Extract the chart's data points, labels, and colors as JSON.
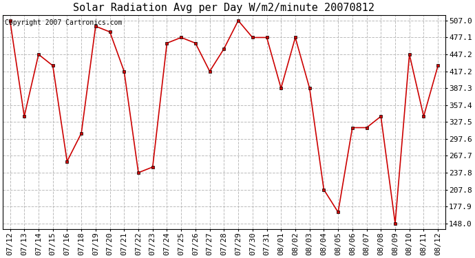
{
  "title": "Solar Radiation Avg per Day W/m2/minute 20070812",
  "copyright_text": "Copyright 2007 Cartronics.com",
  "labels": [
    "07/12",
    "07/13",
    "07/14",
    "07/15",
    "07/16",
    "07/18",
    "07/19",
    "07/20",
    "07/21",
    "07/22",
    "07/23",
    "07/24",
    "07/25",
    "07/26",
    "07/27",
    "07/28",
    "07/29",
    "07/30",
    "07/31",
    "08/01",
    "08/02",
    "08/03",
    "08/04",
    "08/05",
    "08/06",
    "08/07",
    "08/08",
    "08/09",
    "08/10",
    "08/11",
    "08/12"
  ],
  "values": [
    507.0,
    337.5,
    447.2,
    427.2,
    257.7,
    307.6,
    497.0,
    487.0,
    417.2,
    237.8,
    247.8,
    467.1,
    477.1,
    467.1,
    417.2,
    457.2,
    507.0,
    477.1,
    477.1,
    387.3,
    477.1,
    387.3,
    207.8,
    167.9,
    317.5,
    317.5,
    337.5,
    148.0,
    447.2,
    337.5,
    427.2
  ],
  "line_color": "#cc0000",
  "marker": "s",
  "marker_size": 3,
  "marker_color": "#cc0000",
  "marker_edge_color": "#000000",
  "background_color": "#ffffff",
  "plot_bg_color": "#ffffff",
  "grid_color": "#bbbbbb",
  "grid_style": "--",
  "yticks": [
    148.0,
    177.9,
    207.8,
    237.8,
    267.7,
    297.6,
    327.5,
    357.4,
    387.3,
    417.2,
    447.2,
    477.1,
    507.0
  ],
  "ylim": [
    138.0,
    517.0
  ],
  "title_fontsize": 11,
  "tick_fontsize": 8,
  "copyright_fontsize": 7
}
